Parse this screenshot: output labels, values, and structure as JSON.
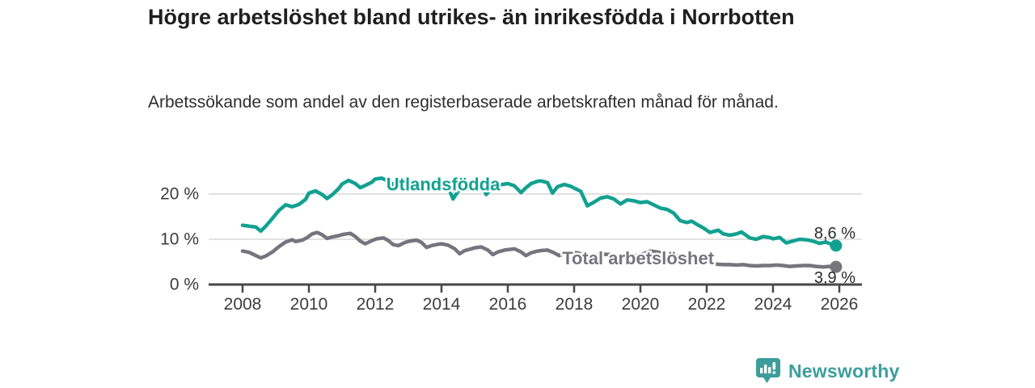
{
  "header": {
    "title": "Högre arbetslöshet bland utrikes- än inrikesfödda i Norrbotten",
    "subtitle": "Arbetssökande som andel av den registerbaserade arbetskraften månad för månad."
  },
  "chart_data": {
    "type": "line",
    "title": "Högre arbetslöshet bland utrikes- än inrikesfödda i Norrbotten",
    "subtitle": "Arbetssökande som andel av den registerbaserade arbetskraften månad för månad.",
    "unit": "%",
    "xlabel": "",
    "ylabel": "",
    "grid": "horizontal",
    "legend_position": "inline-labels",
    "xlim": [
      2007.0,
      2026.7
    ],
    "ylim": [
      0,
      25
    ],
    "x_ticks": [
      2008,
      2010,
      2012,
      2014,
      2016,
      2018,
      2020,
      2022,
      2024,
      2026
    ],
    "y_ticks": [
      {
        "value": 0,
        "label": "0 %"
      },
      {
        "value": 10,
        "label": "10 %"
      },
      {
        "value": 20,
        "label": "20 %"
      }
    ],
    "colors": {
      "accent_teal": "#12a190",
      "neutral_gray": "#76757d",
      "gridline": "#d9d9d9",
      "axis": "#47474d",
      "axis_text": "#3d3d3d",
      "value_text": "#2b2b2b"
    },
    "series": [
      {
        "name": "Utlandsfödda",
        "color": "#12a190",
        "end_value": 8.6,
        "end_label": "8,6 %",
        "label_pos": {
          "year": 2014.05,
          "value": 20.8
        },
        "points": [
          [
            2008.0,
            13.1
          ],
          [
            2008.2,
            12.9
          ],
          [
            2008.4,
            12.7
          ],
          [
            2008.55,
            11.8
          ],
          [
            2008.7,
            12.9
          ],
          [
            2008.9,
            14.6
          ],
          [
            2009.1,
            16.4
          ],
          [
            2009.3,
            17.6
          ],
          [
            2009.5,
            17.2
          ],
          [
            2009.7,
            17.7
          ],
          [
            2009.9,
            18.8
          ],
          [
            2010.0,
            20.2
          ],
          [
            2010.2,
            20.7
          ],
          [
            2010.4,
            19.9
          ],
          [
            2010.55,
            19.0
          ],
          [
            2010.7,
            19.8
          ],
          [
            2010.9,
            21.2
          ],
          [
            2011.0,
            22.2
          ],
          [
            2011.2,
            23.0
          ],
          [
            2011.4,
            22.3
          ],
          [
            2011.55,
            21.4
          ],
          [
            2011.7,
            21.9
          ],
          [
            2011.9,
            22.6
          ],
          [
            2012.0,
            23.3
          ],
          [
            2012.2,
            23.5
          ],
          [
            2012.4,
            22.8
          ],
          [
            2012.55,
            22.1
          ],
          [
            2012.7,
            22.5
          ],
          [
            2012.9,
            22.8
          ],
          [
            2013.0,
            23.0
          ],
          [
            2013.2,
            22.6
          ],
          [
            2013.4,
            21.9
          ],
          [
            2013.55,
            21.6
          ],
          [
            2013.7,
            21.9
          ],
          [
            2013.9,
            22.2
          ],
          [
            2014.0,
            22.4
          ],
          [
            2014.2,
            21.6
          ],
          [
            2014.35,
            18.9
          ],
          [
            2014.5,
            20.6
          ],
          [
            2014.7,
            21.6
          ],
          [
            2014.9,
            22.1
          ],
          [
            2015.0,
            22.3
          ],
          [
            2015.2,
            22.4
          ],
          [
            2015.35,
            19.9
          ],
          [
            2015.5,
            21.2
          ],
          [
            2015.7,
            21.9
          ],
          [
            2015.9,
            22.2
          ],
          [
            2016.0,
            22.3
          ],
          [
            2016.2,
            21.8
          ],
          [
            2016.4,
            20.3
          ],
          [
            2016.55,
            21.4
          ],
          [
            2016.7,
            22.3
          ],
          [
            2016.9,
            22.8
          ],
          [
            2017.0,
            22.9
          ],
          [
            2017.2,
            22.5
          ],
          [
            2017.35,
            20.2
          ],
          [
            2017.5,
            21.6
          ],
          [
            2017.7,
            22.1
          ],
          [
            2017.9,
            21.7
          ],
          [
            2018.0,
            21.3
          ],
          [
            2018.2,
            20.6
          ],
          [
            2018.4,
            17.4
          ],
          [
            2018.6,
            18.2
          ],
          [
            2018.8,
            19.1
          ],
          [
            2019.0,
            19.4
          ],
          [
            2019.2,
            18.9
          ],
          [
            2019.4,
            17.8
          ],
          [
            2019.6,
            18.7
          ],
          [
            2019.8,
            18.5
          ],
          [
            2020.0,
            18.1
          ],
          [
            2020.2,
            18.3
          ],
          [
            2020.4,
            17.6
          ],
          [
            2020.6,
            16.9
          ],
          [
            2020.8,
            16.6
          ],
          [
            2021.0,
            15.8
          ],
          [
            2021.2,
            14.1
          ],
          [
            2021.4,
            13.7
          ],
          [
            2021.55,
            14.0
          ],
          [
            2021.7,
            13.3
          ],
          [
            2021.9,
            12.5
          ],
          [
            2022.1,
            11.5
          ],
          [
            2022.35,
            12.0
          ],
          [
            2022.5,
            11.2
          ],
          [
            2022.7,
            10.9
          ],
          [
            2022.9,
            11.2
          ],
          [
            2023.05,
            11.6
          ],
          [
            2023.3,
            10.3
          ],
          [
            2023.5,
            10.0
          ],
          [
            2023.7,
            10.6
          ],
          [
            2023.9,
            10.4
          ],
          [
            2024.0,
            10.1
          ],
          [
            2024.2,
            10.4
          ],
          [
            2024.4,
            9.2
          ],
          [
            2024.6,
            9.6
          ],
          [
            2024.8,
            10.0
          ],
          [
            2025.0,
            9.9
          ],
          [
            2025.2,
            9.6
          ],
          [
            2025.4,
            9.1
          ],
          [
            2025.6,
            9.4
          ],
          [
            2025.75,
            8.9
          ],
          [
            2025.9,
            8.6
          ]
        ]
      },
      {
        "name": "Total arbetslöshet",
        "color": "#76757d",
        "end_value": 3.9,
        "end_label": "3,9 %",
        "label_pos": {
          "year": 2019.93,
          "value": 4.5
        },
        "points": [
          [
            2008.0,
            7.4
          ],
          [
            2008.2,
            7.1
          ],
          [
            2008.4,
            6.4
          ],
          [
            2008.55,
            5.9
          ],
          [
            2008.7,
            6.3
          ],
          [
            2008.9,
            7.2
          ],
          [
            2009.1,
            8.4
          ],
          [
            2009.3,
            9.4
          ],
          [
            2009.5,
            9.9
          ],
          [
            2009.6,
            9.5
          ],
          [
            2009.8,
            9.8
          ],
          [
            2009.95,
            10.4
          ],
          [
            2010.1,
            11.2
          ],
          [
            2010.25,
            11.5
          ],
          [
            2010.4,
            11.0
          ],
          [
            2010.55,
            10.2
          ],
          [
            2010.7,
            10.5
          ],
          [
            2010.9,
            10.8
          ],
          [
            2011.05,
            11.1
          ],
          [
            2011.25,
            11.3
          ],
          [
            2011.4,
            10.6
          ],
          [
            2011.55,
            9.6
          ],
          [
            2011.7,
            9.0
          ],
          [
            2011.9,
            9.7
          ],
          [
            2012.05,
            10.1
          ],
          [
            2012.25,
            10.3
          ],
          [
            2012.4,
            9.7
          ],
          [
            2012.55,
            8.8
          ],
          [
            2012.7,
            8.6
          ],
          [
            2012.9,
            9.3
          ],
          [
            2013.05,
            9.6
          ],
          [
            2013.25,
            9.8
          ],
          [
            2013.4,
            9.3
          ],
          [
            2013.55,
            8.2
          ],
          [
            2013.7,
            8.6
          ],
          [
            2013.9,
            8.9
          ],
          [
            2014.0,
            9.0
          ],
          [
            2014.2,
            8.7
          ],
          [
            2014.4,
            7.9
          ],
          [
            2014.55,
            6.8
          ],
          [
            2014.7,
            7.5
          ],
          [
            2014.9,
            7.9
          ],
          [
            2015.0,
            8.1
          ],
          [
            2015.2,
            8.3
          ],
          [
            2015.4,
            7.6
          ],
          [
            2015.55,
            6.6
          ],
          [
            2015.7,
            7.2
          ],
          [
            2015.9,
            7.6
          ],
          [
            2016.0,
            7.7
          ],
          [
            2016.2,
            7.9
          ],
          [
            2016.4,
            7.2
          ],
          [
            2016.55,
            6.4
          ],
          [
            2016.7,
            7.0
          ],
          [
            2016.9,
            7.4
          ],
          [
            2017.0,
            7.5
          ],
          [
            2017.2,
            7.6
          ],
          [
            2017.4,
            7.0
          ],
          [
            2017.55,
            6.4
          ],
          [
            2017.7,
            6.9
          ],
          [
            2017.9,
            7.1
          ],
          [
            2018.1,
            7.0
          ],
          [
            2018.3,
            6.6
          ],
          [
            2018.5,
            6.2
          ],
          [
            2018.7,
            6.5
          ],
          [
            2018.9,
            6.7
          ],
          [
            2019.1,
            6.6
          ],
          [
            2019.3,
            6.3
          ],
          [
            2019.5,
            6.0
          ],
          [
            2019.7,
            6.2
          ],
          [
            2019.9,
            6.4
          ],
          [
            2020.1,
            6.8
          ],
          [
            2020.3,
            7.4
          ],
          [
            2020.5,
            7.2
          ],
          [
            2020.7,
            6.9
          ],
          [
            2020.9,
            6.6
          ],
          [
            2021.1,
            6.4
          ],
          [
            2021.3,
            6.0
          ],
          [
            2021.5,
            5.6
          ],
          [
            2021.7,
            5.3
          ],
          [
            2021.9,
            5.1
          ],
          [
            2022.1,
            4.8
          ],
          [
            2022.3,
            4.5
          ],
          [
            2022.5,
            4.4
          ],
          [
            2022.7,
            4.4
          ],
          [
            2022.9,
            4.3
          ],
          [
            2023.1,
            4.4
          ],
          [
            2023.3,
            4.2
          ],
          [
            2023.5,
            4.1
          ],
          [
            2023.7,
            4.2
          ],
          [
            2023.9,
            4.2
          ],
          [
            2024.1,
            4.3
          ],
          [
            2024.3,
            4.2
          ],
          [
            2024.5,
            4.0
          ],
          [
            2024.7,
            4.1
          ],
          [
            2024.9,
            4.2
          ],
          [
            2025.1,
            4.2
          ],
          [
            2025.3,
            4.0
          ],
          [
            2025.5,
            3.9
          ],
          [
            2025.7,
            4.0
          ],
          [
            2025.9,
            3.9
          ]
        ]
      }
    ]
  },
  "footer": {
    "brand": "Newsworthy",
    "logo_color": "#3d9d9d"
  }
}
